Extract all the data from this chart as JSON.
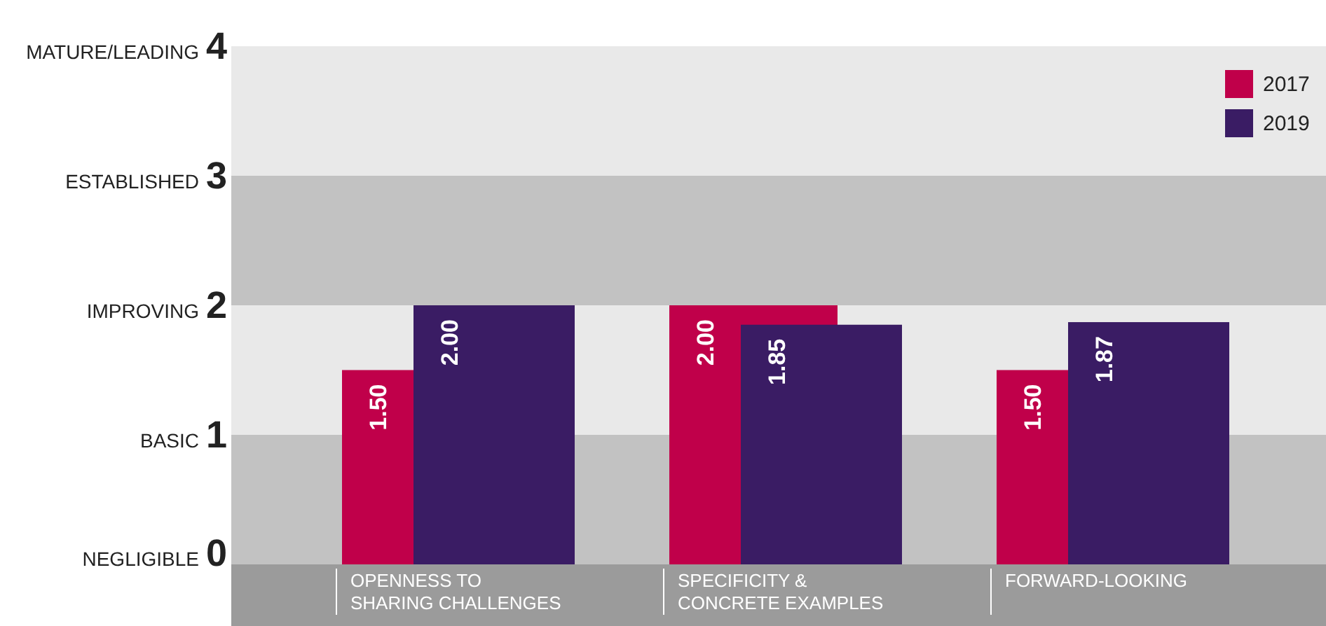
{
  "chart_data": {
    "type": "bar",
    "categories": [
      "OPENNESS TO SHARING CHALLENGES",
      "SPECIFICITY & CONCRETE EXAMPLES",
      "FORWARD-LOOKING"
    ],
    "series": [
      {
        "name": "2017",
        "color": "#c0004a",
        "values": [
          1.5,
          2.0,
          1.5
        ],
        "value_labels": [
          "1.50",
          "2.00",
          "1.50"
        ]
      },
      {
        "name": "2019",
        "color": "#3a1c64",
        "values": [
          2.0,
          1.85,
          1.87
        ],
        "value_labels": [
          "2.00",
          "1.85",
          "1.87"
        ]
      }
    ],
    "ylim": [
      0,
      4
    ],
    "yticks": [
      0,
      1,
      2,
      3,
      4
    ],
    "annotations": [
      "NEGLIGIBLE",
      "BASIC",
      "IMPROVING",
      "ESTABLISHED",
      "MATURE/LEADING"
    ],
    "bands": [
      {
        "axis": "y",
        "from": 0,
        "to": 1,
        "color": "#c2c2c2"
      },
      {
        "axis": "y",
        "from": 1,
        "to": 2,
        "color": "#e9e9e9"
      },
      {
        "axis": "y",
        "from": 2,
        "to": 3,
        "color": "#c2c2c2"
      },
      {
        "axis": "y",
        "from": 3,
        "to": 4,
        "color": "#e9e9e9"
      }
    ],
    "legend": "top right"
  }
}
